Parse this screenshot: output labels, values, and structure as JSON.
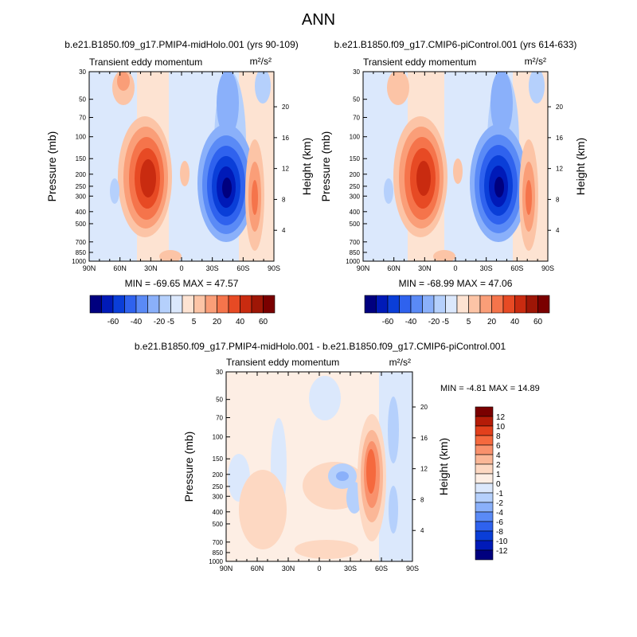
{
  "title": "ANN",
  "panels": [
    {
      "id": "midholo",
      "case_title": "b.e21.B1850.f09_g17.PMIP4-midHolo.001 (yrs 90-109)",
      "variable": "Transient eddy momentum",
      "units": "m²/s²",
      "ylabel_left": "Pressure (mb)",
      "ylabel_right": "Height (km)",
      "stats": "MIN = -69.65  MAX = 47.57",
      "min": -69.65,
      "max": 47.57
    },
    {
      "id": "picontrol",
      "case_title": "b.e21.B1850.f09_g17.CMIP6-piControl.001 (yrs 614-633)",
      "variable": "Transient eddy momentum",
      "units": "m²/s²",
      "ylabel_left": "Pressure (mb)",
      "ylabel_right": "Height (km)",
      "stats": "MIN = -68.99  MAX = 47.06",
      "min": -68.99,
      "max": 47.06
    },
    {
      "id": "difference",
      "case_title": "b.e21.B1850.f09_g17.PMIP4-midHolo.001 - b.e21.B1850.f09_g17.CMIP6-piControl.001",
      "variable": "Transient eddy momentum",
      "units": "m²/s²",
      "ylabel_left": "Pressure (mb)",
      "ylabel_right": "Height (km)",
      "stats": "MIN =  -4.81  MAX =  14.89",
      "min": -4.81,
      "max": 14.89
    }
  ],
  "axes": {
    "x_ticks": [
      "90N",
      "60N",
      "30N",
      "0",
      "30S",
      "60S",
      "90S"
    ],
    "pressure_ticks": [
      "30",
      "50",
      "70",
      "100",
      "150",
      "200",
      "250",
      "300",
      "400",
      "500",
      "700",
      "850",
      "1000"
    ],
    "height_ticks": [
      "20",
      "16",
      "12",
      "8",
      "4"
    ]
  },
  "colorbar_main": {
    "labels": [
      "-60",
      "-40",
      "-20",
      "-5",
      "5",
      "20",
      "40",
      "60"
    ],
    "colors": [
      "#00007f",
      "#001ab8",
      "#0a3ed8",
      "#2f62ee",
      "#5a8af6",
      "#8ab0fa",
      "#b5d0fc",
      "#dbe8fc",
      "#fde3d2",
      "#fcc4a6",
      "#fa9e78",
      "#f5744b",
      "#e74a24",
      "#c92b10",
      "#9e1606",
      "#7a0000"
    ]
  },
  "colorbar_diff": {
    "labels": [
      "12",
      "10",
      "8",
      "6",
      "4",
      "2",
      "1",
      "0",
      "-1",
      "-2",
      "-4",
      "-6",
      "-8",
      "-10",
      "-12"
    ],
    "colors": [
      "#7a0000",
      "#b51c08",
      "#e2401c",
      "#f5693e",
      "#f9916c",
      "#fbb797",
      "#fdd8c2",
      "#fdeee4",
      "#dbe8fc",
      "#b5d0fc",
      "#8ab0fa",
      "#5a8af6",
      "#2f62ee",
      "#0a3ed8",
      "#001ab8",
      "#00007f"
    ]
  },
  "chart_data": [
    {
      "type": "heatmap",
      "title": "Transient eddy momentum",
      "subtitle": "b.e21.B1850.f09_g17.PMIP4-midHolo.001 (yrs 90-109)",
      "xlabel": "",
      "ylabel": "Pressure (mb)",
      "ylabel_right": "Height (km)",
      "x_ticks": [
        "90N",
        "60N",
        "30N",
        "0",
        "30S",
        "60S",
        "90S"
      ],
      "ylim": [
        1000,
        30
      ],
      "min": -69.65,
      "max": 47.57,
      "features": [
        {
          "lat": 33,
          "pressure": 230,
          "value": 47.57
        },
        {
          "lat": -40,
          "pressure": 250,
          "value": -69.65
        },
        {
          "lat": 70,
          "pressure": 30,
          "value": 5
        },
        {
          "lat": -63,
          "pressure": 300,
          "value": 10
        },
        {
          "lat": -65,
          "pressure": 40,
          "value": -10
        },
        {
          "lat": 60,
          "pressure": 250,
          "value": -5
        }
      ]
    },
    {
      "type": "heatmap",
      "title": "Transient eddy momentum",
      "subtitle": "b.e21.B1850.f09_g17.CMIP6-piControl.001 (yrs 614-633)",
      "xlabel": "",
      "ylabel": "Pressure (mb)",
      "ylabel_right": "Height (km)",
      "x_ticks": [
        "90N",
        "60N",
        "30N",
        "0",
        "30S",
        "60S",
        "90S"
      ],
      "ylim": [
        1000,
        30
      ],
      "min": -68.99,
      "max": 47.06,
      "features": [
        {
          "lat": 35,
          "pressure": 230,
          "value": 47.06
        },
        {
          "lat": -38,
          "pressure": 250,
          "value": -68.99
        },
        {
          "lat": 68,
          "pressure": 30,
          "value": 5
        },
        {
          "lat": -63,
          "pressure": 300,
          "value": 10
        },
        {
          "lat": -65,
          "pressure": 40,
          "value": -10
        },
        {
          "lat": 62,
          "pressure": 250,
          "value": -5
        }
      ]
    },
    {
      "type": "heatmap",
      "title": "Transient eddy momentum",
      "subtitle": "b.e21.B1850.f09_g17.PMIP4-midHolo.001 - b.e21.B1850.f09_g17.CMIP6-piControl.001",
      "xlabel": "",
      "ylabel": "Pressure (mb)",
      "ylabel_right": "Height (km)",
      "x_ticks": [
        "90N",
        "60N",
        "30N",
        "0",
        "30S",
        "60S",
        "90S"
      ],
      "ylim": [
        1000,
        30
      ],
      "min": -4.81,
      "max": 14.89,
      "features": [
        {
          "lat": -47,
          "pressure": 250,
          "value": 14.89
        },
        {
          "lat": -28,
          "pressure": 200,
          "value": -4.81
        },
        {
          "lat": -38,
          "pressure": 300,
          "value": -2
        },
        {
          "lat": 20,
          "pressure": 300,
          "value": 1
        },
        {
          "lat": -75,
          "pressure": 200,
          "value": -1
        }
      ]
    }
  ]
}
